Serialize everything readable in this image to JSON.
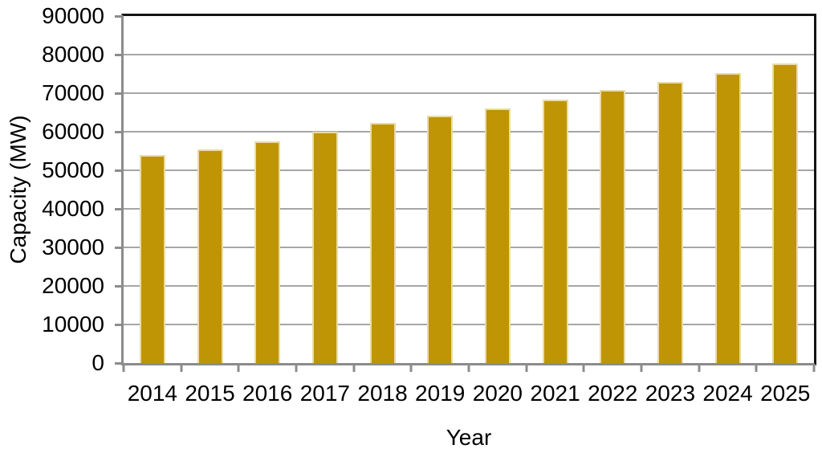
{
  "chart_data": {
    "type": "bar",
    "categories": [
      "2014",
      "2015",
      "2016",
      "2017",
      "2018",
      "2019",
      "2020",
      "2021",
      "2022",
      "2023",
      "2024",
      "2025"
    ],
    "values": [
      53900,
      55400,
      57500,
      60000,
      62300,
      64200,
      66100,
      68400,
      70800,
      73000,
      75200,
      77800
    ],
    "title": "",
    "xlabel": "Year",
    "ylabel": "Capacity (MW)",
    "ylim": [
      0,
      90000
    ],
    "ytick_step": 10000,
    "ytick_labels": [
      "90000",
      "80000",
      "70000",
      "60000",
      "50000",
      "40000",
      "30000",
      "20000",
      "10000",
      "0"
    ],
    "grid": true,
    "legend": false,
    "colors": {
      "bar_fill": "#BF9405",
      "bar_border": "#E8DCA6",
      "gridline": "#A6A6A6",
      "axis_line": "#8C8C8C",
      "plot_border": "#141414",
      "text": "#000000",
      "background": "#FFFFFF"
    }
  }
}
